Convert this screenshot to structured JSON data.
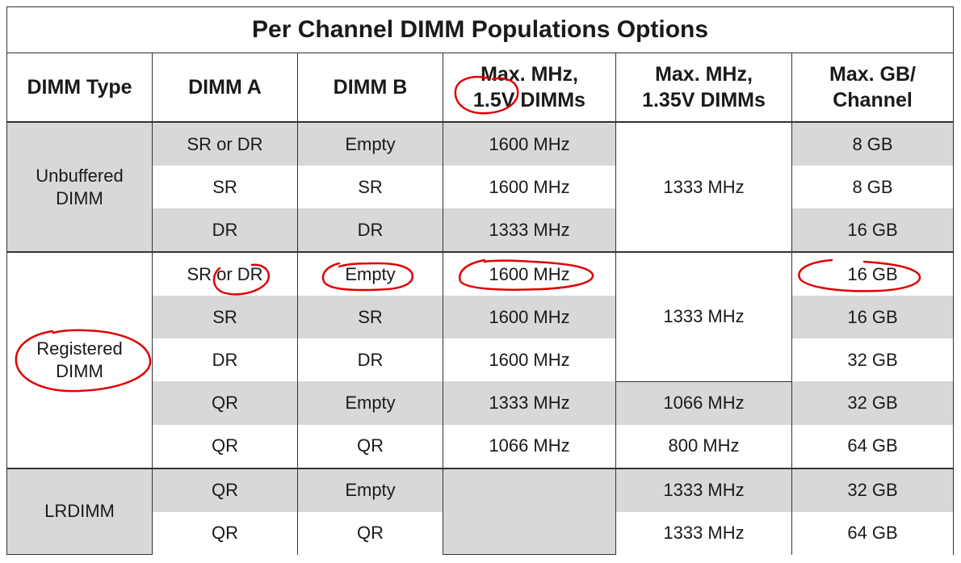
{
  "title": "Per Channel DIMM Populations Options",
  "headers": {
    "dimm_type": "DIMM Type",
    "dimm_a": "DIMM A",
    "dimm_b": "DIMM B",
    "mhz15": [
      "Max. MHz,",
      "1.5V DIMMs"
    ],
    "mhz135": [
      "Max. MHz,",
      "1.35V DIMMs"
    ],
    "gb": [
      "Max. GB/",
      "Channel"
    ]
  },
  "groups": {
    "unbuffered": {
      "type": [
        "Unbuffered",
        "DIMM"
      ],
      "mhz135": "1333 MHz",
      "rows": [
        {
          "a": "SR or DR",
          "b": "Empty",
          "mhz15": "1600 MHz",
          "gb": "8 GB"
        },
        {
          "a": "SR",
          "b": "SR",
          "mhz15": "1600 MHz",
          "gb": "8 GB"
        },
        {
          "a": "DR",
          "b": "DR",
          "mhz15": "1333 MHz",
          "gb": "16 GB"
        }
      ]
    },
    "registered": {
      "type": [
        "Registered",
        "DIMM"
      ],
      "mhz135_merged": "1333 MHz",
      "rows": [
        {
          "a": "SR or DR",
          "b": "Empty",
          "mhz15": "1600 MHz",
          "gb": "16 GB"
        },
        {
          "a": "SR",
          "b": "SR",
          "mhz15": "1600 MHz",
          "gb": "16 GB"
        },
        {
          "a": "DR",
          "b": "DR",
          "mhz15": "1600 MHz",
          "gb": "32 GB"
        },
        {
          "a": "QR",
          "b": "Empty",
          "mhz15": "1333 MHz",
          "mhz135": "1066 MHz",
          "gb": "32 GB"
        },
        {
          "a": "QR",
          "b": "QR",
          "mhz15": "1066 MHz",
          "mhz135": "800 MHz",
          "gb": "64 GB"
        }
      ]
    },
    "lrdimm": {
      "type": "LRDIMM",
      "rows": [
        {
          "a": "QR",
          "b": "Empty",
          "mhz135": "1333 MHz",
          "gb": "32 GB"
        },
        {
          "a": "QR",
          "b": "QR",
          "mhz135": "1333 MHz",
          "gb": "64 GB"
        }
      ]
    }
  },
  "annotation_color": "#e00000"
}
